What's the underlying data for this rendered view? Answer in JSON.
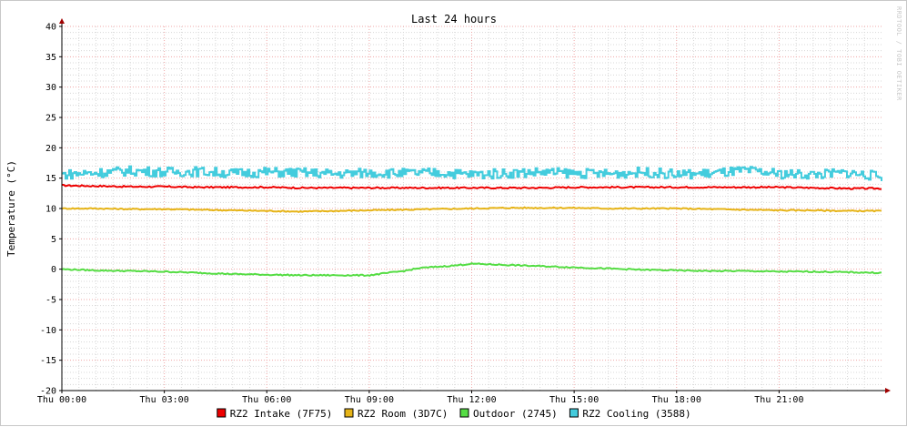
{
  "chart_data": {
    "type": "line",
    "title": "Last 24 hours",
    "ylabel": "Temperature (°C)",
    "xlabel": "",
    "watermark": "RRDTOOL / TOBI OETIKER",
    "ylim": [
      -20,
      40
    ],
    "yticks": [
      40,
      35,
      30,
      25,
      20,
      15,
      10,
      5,
      0,
      -5,
      -10,
      -15,
      -20
    ],
    "xlim": [
      0,
      24
    ],
    "x_major_ticks": [
      0,
      3,
      6,
      9,
      12,
      15,
      18,
      21
    ],
    "x_tick_labels": [
      "Thu 00:00",
      "Thu 03:00",
      "Thu 06:00",
      "Thu 09:00",
      "Thu 12:00",
      "Thu 15:00",
      "Thu 18:00",
      "Thu 21:00"
    ],
    "grid": true,
    "legend_position": "bottom",
    "colors": {
      "major_grid": "#f0a8a8",
      "minor_grid": "#d8d8d8",
      "axis": "#000000",
      "arrow": "#a00000"
    },
    "series": [
      {
        "name": "RZ2 Intake (7F75)",
        "color": "#ee0000",
        "x": [
          0,
          1,
          2,
          3,
          4,
          5,
          6,
          7,
          8,
          9,
          10,
          11,
          12,
          13,
          14,
          15,
          16,
          17,
          18,
          19,
          20,
          21,
          22,
          23,
          24
        ],
        "y": [
          13.8,
          13.7,
          13.6,
          13.6,
          13.5,
          13.5,
          13.5,
          13.4,
          13.4,
          13.4,
          13.4,
          13.4,
          13.4,
          13.4,
          13.4,
          13.5,
          13.5,
          13.5,
          13.5,
          13.5,
          13.5,
          13.5,
          13.4,
          13.3,
          13.3
        ]
      },
      {
        "name": "RZ2 Room (3D7C)",
        "color": "#e6b418",
        "x": [
          0,
          1,
          2,
          3,
          4,
          5,
          6,
          7,
          8,
          9,
          10,
          11,
          12,
          13,
          14,
          15,
          16,
          17,
          18,
          19,
          20,
          21,
          22,
          23,
          24
        ],
        "y": [
          10.0,
          10.0,
          9.9,
          9.9,
          9.8,
          9.7,
          9.6,
          9.5,
          9.6,
          9.7,
          9.8,
          9.9,
          10.0,
          10.1,
          10.1,
          10.1,
          10.0,
          10.0,
          10.0,
          9.9,
          9.8,
          9.7,
          9.7,
          9.6,
          9.6
        ]
      },
      {
        "name": "Outdoor (2745)",
        "color": "#55dd44",
        "x": [
          0,
          1,
          2,
          3,
          4,
          5,
          6,
          7,
          8,
          9,
          10,
          10.5,
          11,
          11.5,
          12,
          12.5,
          13,
          14,
          15,
          16,
          17,
          18,
          19,
          20,
          21,
          22,
          23,
          24
        ],
        "y": [
          0.0,
          -0.2,
          -0.3,
          -0.4,
          -0.6,
          -0.8,
          -0.9,
          -1.0,
          -1.0,
          -1.0,
          -0.3,
          0.2,
          0.4,
          0.6,
          0.9,
          0.8,
          0.7,
          0.5,
          0.3,
          0.1,
          -0.1,
          -0.2,
          -0.3,
          -0.3,
          -0.4,
          -0.4,
          -0.5,
          -0.6
        ]
      },
      {
        "name": "RZ2 Cooling (3588)",
        "color": "#44ccdd",
        "x": [
          0,
          1,
          2,
          3,
          4,
          5,
          6,
          7,
          8,
          9,
          10,
          11,
          12,
          13,
          14,
          15,
          16,
          17,
          18,
          19,
          20,
          21,
          22,
          23,
          24
        ],
        "y": [
          15.6,
          15.9,
          16.2,
          16.0,
          16.1,
          15.8,
          16.0,
          15.9,
          15.7,
          15.9,
          15.8,
          15.9,
          15.6,
          15.8,
          16.0,
          15.8,
          15.7,
          16.0,
          15.6,
          15.8,
          16.2,
          15.7,
          15.6,
          15.9,
          15.2
        ]
      }
    ]
  }
}
